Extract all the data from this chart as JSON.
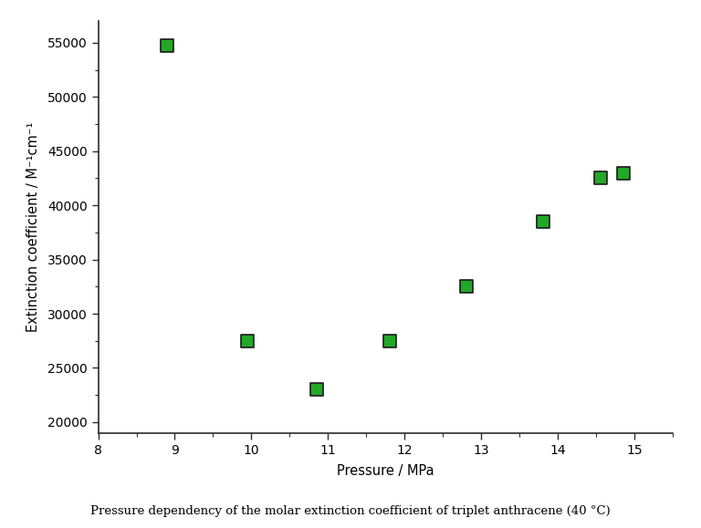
{
  "x": [
    8.9,
    9.95,
    10.85,
    11.8,
    12.8,
    13.8,
    14.55,
    14.85
  ],
  "y": [
    54700,
    27500,
    23000,
    27500,
    32500,
    38500,
    42500,
    43000
  ],
  "marker_face_color": "#22a827",
  "marker_edge_color": "#1a1a1a",
  "marker_size": 100,
  "marker_style": "s",
  "xlabel": "Pressure / MPa",
  "ylabel": "Extinction coefficient / M⁻¹cm⁻¹",
  "title": "Pressure dependency of the molar extinction coefficient of triplet anthracene (40 °C)",
  "xlim": [
    8,
    15.5
  ],
  "ylim": [
    19000,
    57000
  ],
  "xticks": [
    8,
    9,
    10,
    11,
    12,
    13,
    14,
    15
  ],
  "yticks": [
    20000,
    25000,
    30000,
    35000,
    40000,
    45000,
    50000,
    55000
  ],
  "background_color": "#ffffff",
  "title_fontsize": 9.5,
  "axis_label_fontsize": 10.5,
  "tick_fontsize": 10
}
